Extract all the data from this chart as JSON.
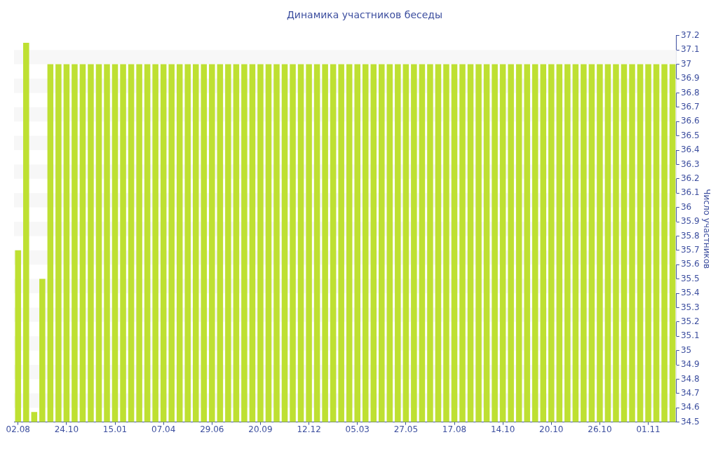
{
  "chart_data": {
    "type": "bar",
    "title": "Динамика участников беседы",
    "ylabel": "Число участников",
    "categories": [
      "02.08",
      null,
      null,
      null,
      null,
      null,
      "24.10",
      null,
      null,
      null,
      null,
      null,
      "15.01",
      null,
      null,
      null,
      null,
      null,
      "07.04",
      null,
      null,
      null,
      null,
      null,
      "29.06",
      null,
      null,
      null,
      null,
      null,
      "20.09",
      null,
      null,
      null,
      null,
      null,
      "12.12",
      null,
      null,
      null,
      null,
      null,
      "05.03",
      null,
      null,
      null,
      null,
      null,
      "27.05",
      null,
      null,
      null,
      null,
      null,
      "17.08",
      null,
      null,
      null,
      null,
      null,
      "14.10",
      null,
      null,
      null,
      null,
      null,
      "20.10",
      null,
      null,
      null,
      null,
      null,
      "26.10",
      null,
      null,
      null,
      null,
      null,
      "01.11",
      null,
      null,
      null
    ],
    "values": [
      35.7,
      37.15,
      34.57,
      35.5,
      37,
      37,
      37,
      37,
      37,
      37,
      37,
      37,
      37,
      37,
      37,
      37,
      37,
      37,
      37,
      37,
      37,
      37,
      37,
      37,
      37,
      37,
      37,
      37,
      37,
      37,
      37,
      37,
      37,
      37,
      37,
      37,
      37,
      37,
      37,
      37,
      37,
      37,
      37,
      37,
      37,
      37,
      37,
      37,
      37,
      37,
      37,
      37,
      37,
      37,
      37,
      37,
      37,
      37,
      37,
      37,
      37,
      37,
      37,
      37,
      37,
      37,
      37,
      37,
      37,
      37,
      37,
      37,
      37,
      37,
      37,
      37,
      37,
      37,
      37,
      37,
      37,
      37
    ],
    "color": "#bee032",
    "ylim": [
      34.5,
      37.2
    ],
    "yticks": [
      34.5,
      34.6,
      34.7,
      34.8,
      34.9,
      35,
      35.1,
      35.2,
      35.3,
      35.4,
      35.5,
      35.6,
      35.7,
      35.8,
      35.9,
      36,
      36.1,
      36.2,
      36.3,
      36.4,
      36.5,
      36.6,
      36.7,
      36.8,
      36.9,
      37,
      37.1,
      37.2
    ],
    "bands": [
      {
        "axis": "y",
        "from": 34.6,
        "to": 34.7,
        "color": "#f7f7f7"
      },
      {
        "axis": "y",
        "from": 34.8,
        "to": 34.9,
        "color": "#f7f7f7"
      },
      {
        "axis": "y",
        "from": 35,
        "to": 35.1,
        "color": "#f7f7f7"
      },
      {
        "axis": "y",
        "from": 35.2,
        "to": 35.3,
        "color": "#f7f7f7"
      },
      {
        "axis": "y",
        "from": 35.4,
        "to": 35.5,
        "color": "#f7f7f7"
      },
      {
        "axis": "y",
        "from": 35.6,
        "to": 35.7,
        "color": "#f7f7f7"
      },
      {
        "axis": "y",
        "from": 35.8,
        "to": 35.9,
        "color": "#f7f7f7"
      },
      {
        "axis": "y",
        "from": 36,
        "to": 36.1,
        "color": "#f7f7f7"
      },
      {
        "axis": "y",
        "from": 36.2,
        "to": 36.3,
        "color": "#f7f7f7"
      },
      {
        "axis": "y",
        "from": 36.4,
        "to": 36.5,
        "color": "#f7f7f7"
      },
      {
        "axis": "y",
        "from": 36.6,
        "to": 36.7,
        "color": "#f7f7f7"
      },
      {
        "axis": "y",
        "from": 36.8,
        "to": 36.9,
        "color": "#f7f7f7"
      },
      {
        "axis": "y",
        "from": 37,
        "to": 37.1,
        "color": "#f7f7f7"
      }
    ]
  }
}
